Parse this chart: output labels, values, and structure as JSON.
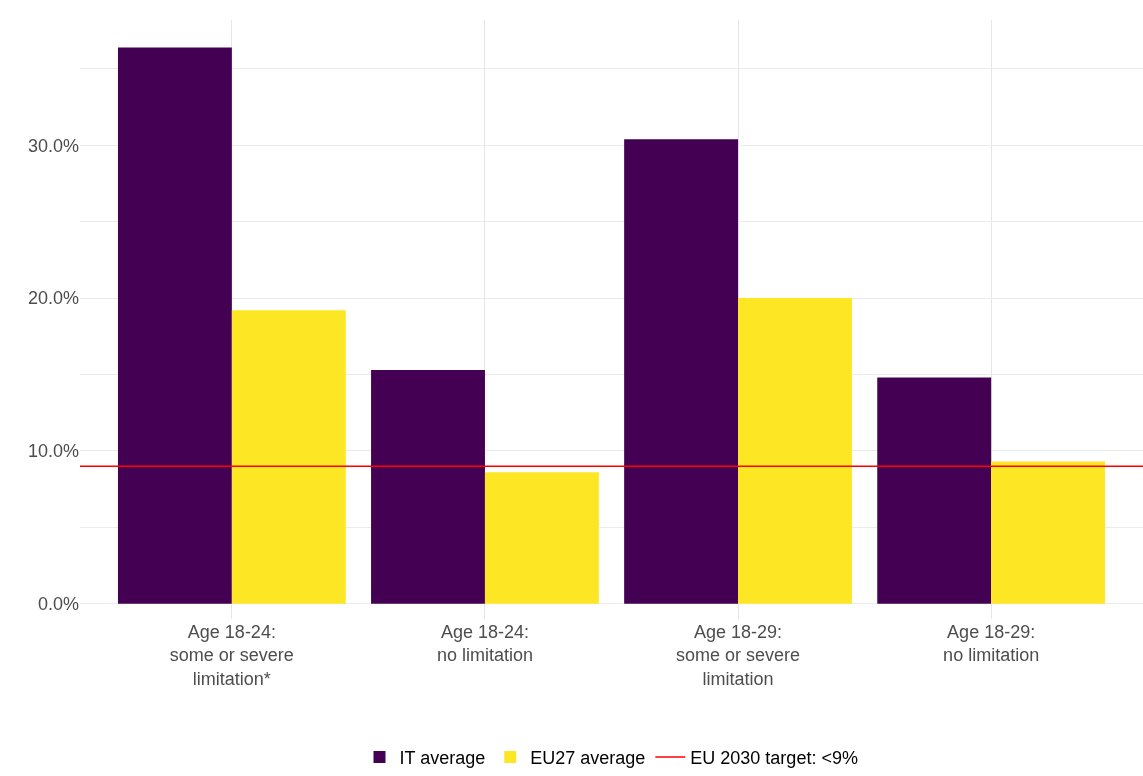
{
  "chart_data": {
    "type": "bar",
    "categories": [
      "Age 18-24:\nsome or severe\nlimitation*",
      "Age 18-24:\nno limitation",
      "Age 18-29:\nsome or severe\nlimitation",
      "Age 18-29:\nno limitation"
    ],
    "series": [
      {
        "name": "IT average",
        "color": "#440154",
        "values": [
          36.4,
          15.3,
          30.4,
          14.8
        ]
      },
      {
        "name": "EU27 average",
        "color": "#fde725",
        "values": [
          19.2,
          8.6,
          20.0,
          9.3
        ]
      }
    ],
    "ylim": [
      -1,
      38.2
    ],
    "yticks": [
      {
        "value": 0,
        "label": "0.0%"
      },
      {
        "value": 5,
        "label": null
      },
      {
        "value": 10,
        "label": "10.0%"
      },
      {
        "value": 15,
        "label": null
      },
      {
        "value": 20,
        "label": "20.0%"
      },
      {
        "value": 25,
        "label": null
      },
      {
        "value": 30,
        "label": "30.0%"
      },
      {
        "value": 35,
        "label": null
      }
    ],
    "ref_lines": [
      {
        "axis": "y",
        "value": 9,
        "label": "EU 2030 target: <9%",
        "color": "#ff0000",
        "line_style": "solid"
      }
    ],
    "grid": true,
    "legend": "bottom"
  }
}
